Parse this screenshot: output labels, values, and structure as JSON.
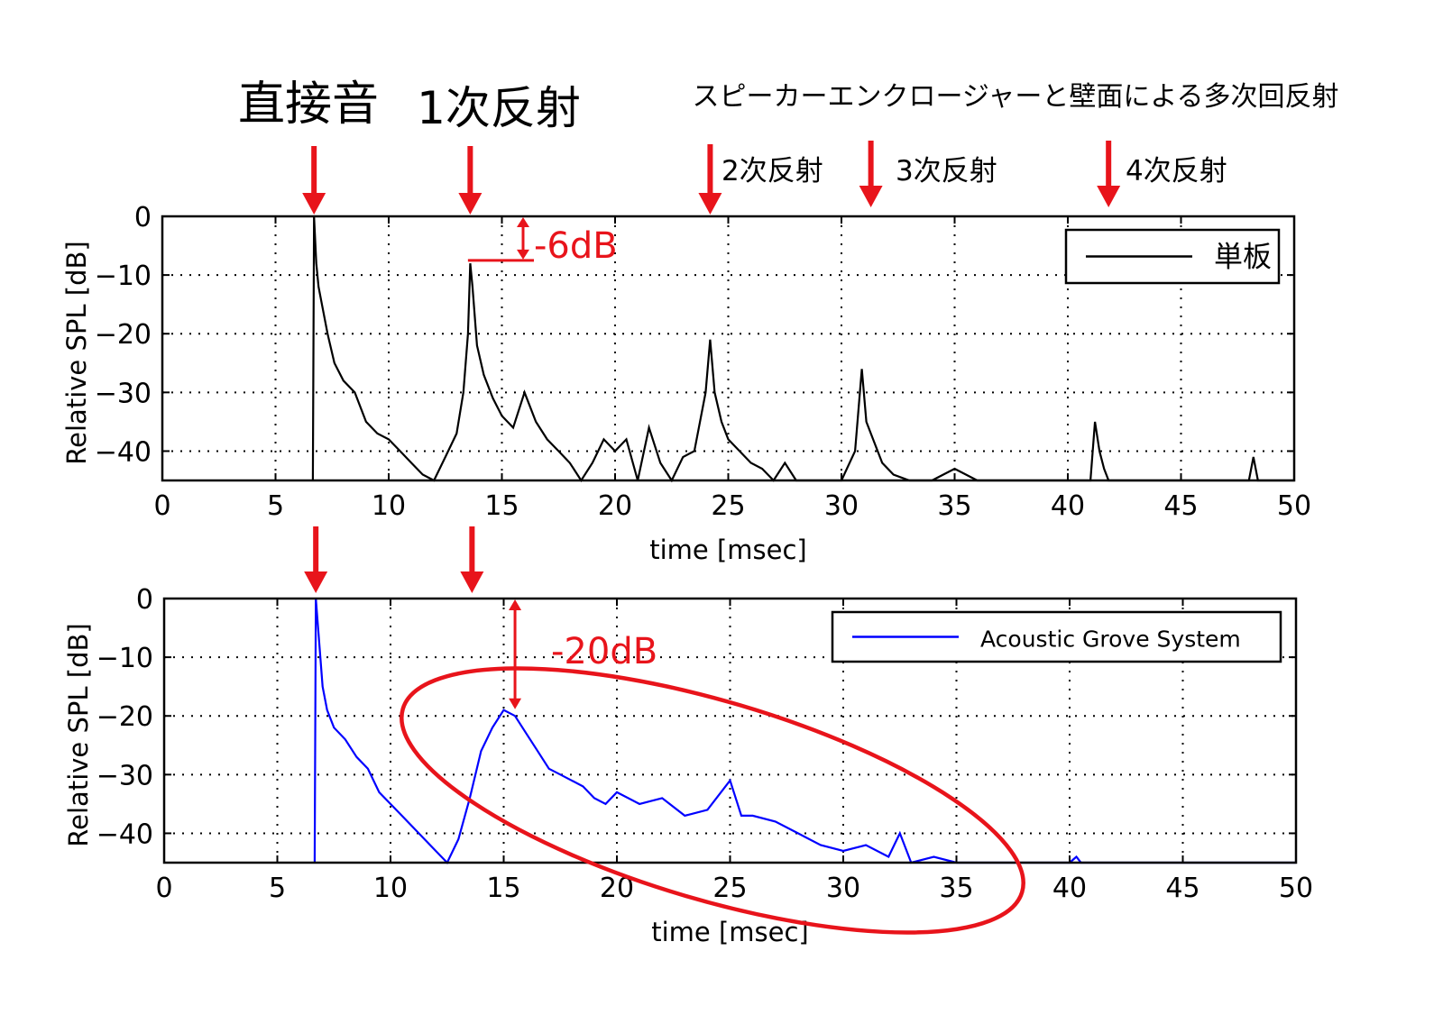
{
  "annotations": {
    "direct_sound": "直接音",
    "first_reflection": "1次反射",
    "multi_reflection": "スピーカーエンクロージャーと壁面による多次回反射",
    "second_reflection": "2次反射",
    "third_reflection": "3次反射",
    "fourth_reflection": "4次反射",
    "minus6db": "-6dB",
    "minus20db": "-20dB",
    "accent_color": "#e8141b"
  },
  "chart_data": [
    {
      "type": "line",
      "title": "",
      "xlabel": "time [msec]",
      "ylabel": "Relative SPL [dB]",
      "xlim": [
        0,
        50
      ],
      "ylim": [
        -45,
        0
      ],
      "x_ticks": [
        "0",
        "5",
        "10",
        "15",
        "20",
        "25",
        "30",
        "35",
        "40",
        "45",
        "50"
      ],
      "y_ticks": [
        "0",
        "−10",
        "−20",
        "−30",
        "−40"
      ],
      "grid": true,
      "legend_position": "top-right",
      "series": [
        {
          "name": "単板",
          "color": "#000000",
          "x": [
            6.65,
            6.7,
            6.8,
            6.9,
            7.1,
            7.3,
            7.6,
            8.0,
            8.5,
            9.0,
            9.5,
            10.0,
            10.5,
            11.0,
            11.5,
            12.0,
            12.5,
            13.0,
            13.3,
            13.5,
            13.6,
            13.7,
            13.9,
            14.2,
            14.6,
            15.0,
            15.5,
            16.0,
            16.5,
            17.0,
            17.5,
            18.0,
            18.5,
            19.0,
            19.5,
            20.0,
            20.5,
            21.0,
            21.5,
            22.0,
            22.5,
            23.0,
            23.5,
            24.0,
            24.2,
            24.4,
            24.7,
            25.0,
            25.5,
            26.0,
            26.5,
            27.0,
            27.5,
            28.0,
            29.0,
            30.0,
            30.6,
            30.9,
            31.1,
            31.4,
            31.8,
            32.3,
            33.0,
            34.0,
            35.0,
            36.0,
            37.0,
            40.0,
            41.0,
            41.2,
            41.4,
            41.6,
            41.8,
            42.0,
            45.0,
            48.0,
            48.2,
            48.4,
            50.0
          ],
          "values": [
            -45,
            0,
            -8,
            -12,
            -16,
            -20,
            -25,
            -28,
            -30,
            -35,
            -37,
            -38,
            -40,
            -42,
            -44,
            -45,
            -41,
            -37,
            -30,
            -20,
            -8,
            -12,
            -22,
            -27,
            -31,
            -34,
            -36,
            -30,
            -35,
            -38,
            -40,
            -42,
            -45,
            -42,
            -38,
            -40,
            -38,
            -45,
            -36,
            -42,
            -45,
            -41,
            -40,
            -30,
            -21,
            -30,
            -35,
            -38,
            -40,
            -42,
            -43,
            -45,
            -42,
            -45,
            -45,
            -45,
            -40,
            -26,
            -35,
            -38,
            -42,
            -44,
            -45,
            -45,
            -43,
            -45,
            -45,
            -45,
            -45,
            -35,
            -40,
            -43,
            -45,
            -45,
            -45,
            -45,
            -41,
            -45,
            -45
          ]
        }
      ]
    },
    {
      "type": "line",
      "title": "",
      "xlabel": "time [msec]",
      "ylabel": "Relative SPL [dB]",
      "xlim": [
        0,
        50
      ],
      "ylim": [
        -45,
        0
      ],
      "x_ticks": [
        "0",
        "5",
        "10",
        "15",
        "20",
        "25",
        "30",
        "35",
        "40",
        "45",
        "50"
      ],
      "y_ticks": [
        "0",
        "−10",
        "−20",
        "−30",
        "−40"
      ],
      "grid": true,
      "legend_position": "top-right",
      "series": [
        {
          "name": "Acoustic Grove System",
          "color": "#0000ff",
          "x": [
            6.65,
            6.7,
            6.8,
            7.0,
            7.2,
            7.5,
            8.0,
            8.5,
            9.0,
            9.5,
            10.0,
            10.5,
            11.0,
            11.5,
            12.0,
            12.5,
            13.0,
            13.5,
            14.0,
            14.5,
            15.0,
            15.5,
            16.0,
            16.5,
            17.0,
            17.5,
            18.0,
            18.5,
            19.0,
            19.5,
            20.0,
            21.0,
            22.0,
            23.0,
            24.0,
            25.0,
            25.5,
            26.0,
            27.0,
            28.0,
            29.0,
            30.0,
            31.0,
            32.0,
            32.5,
            33.0,
            34.0,
            35.0,
            35.5,
            36.0,
            37.0,
            38.0,
            40.0,
            40.3,
            40.5,
            50.0
          ],
          "values": [
            -45,
            0,
            -5,
            -15,
            -19,
            -22,
            -24,
            -27,
            -29,
            -33,
            -35,
            -37,
            -39,
            -41,
            -43,
            -45,
            -41,
            -34,
            -26,
            -22,
            -19,
            -20,
            -23,
            -26,
            -29,
            -30,
            -31,
            -32,
            -34,
            -35,
            -33,
            -35,
            -34,
            -37,
            -36,
            -31,
            -37,
            -37,
            -38,
            -40,
            -42,
            -43,
            -42,
            -44,
            -40,
            -45,
            -44,
            -45,
            -45,
            -45,
            -45,
            -45,
            -45,
            -44,
            -45,
            -45
          ]
        }
      ]
    }
  ]
}
